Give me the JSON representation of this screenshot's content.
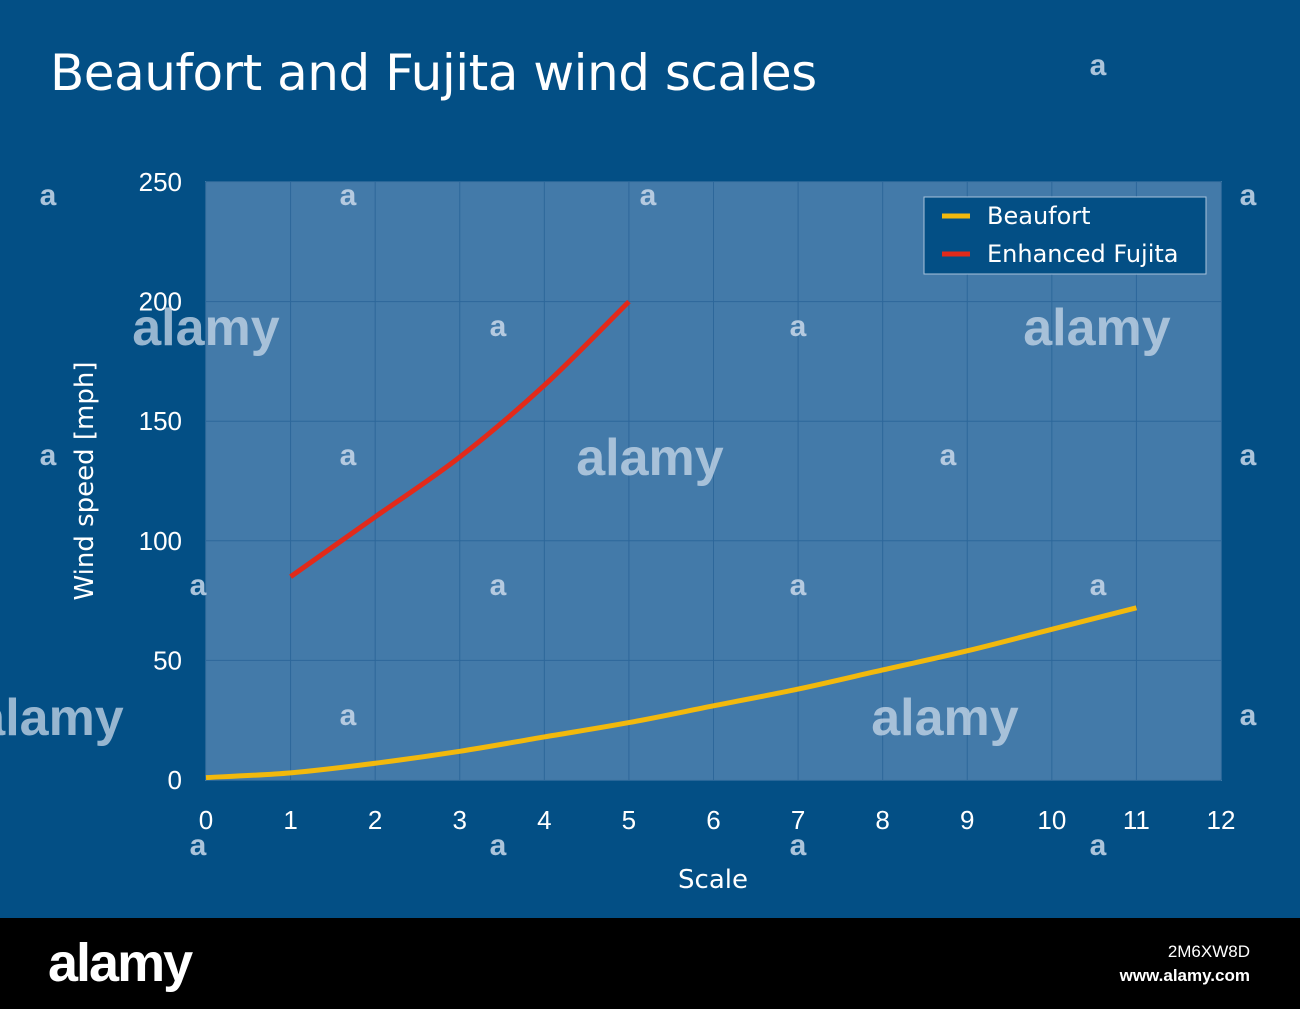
{
  "chart_data": {
    "type": "line",
    "title": "Beaufort and Fujita wind scales",
    "xlabel": "Scale",
    "ylabel": "Wind speed [mph]",
    "xlim": [
      0,
      12
    ],
    "ylim": [
      0,
      250
    ],
    "x_ticks": [
      "0",
      "1",
      "2",
      "3",
      "4",
      "5",
      "6",
      "7",
      "8",
      "9",
      "10",
      "11",
      "12"
    ],
    "y_ticks": [
      "0",
      "50",
      "100",
      "150",
      "200",
      "250"
    ],
    "grid": true,
    "legend_position": "top-right",
    "series": [
      {
        "name": "Beaufort",
        "color": "#f2b90d",
        "x": [
          0,
          1,
          2,
          3,
          4,
          5,
          6,
          7,
          8,
          9,
          10,
          11
        ],
        "y": [
          1,
          3,
          7,
          12,
          18,
          24,
          31,
          38,
          46,
          54,
          63,
          72
        ]
      },
      {
        "name": "Enhanced Fujita",
        "color": "#e22a1a",
        "x": [
          1,
          2,
          3,
          4,
          5
        ],
        "y": [
          85,
          110,
          135,
          165,
          200
        ]
      }
    ]
  },
  "watermark": {
    "word": "alamy",
    "letter": "a"
  },
  "footer": {
    "logo": "alamy",
    "image_id": "2M6XW8D",
    "site": "www.alamy.com"
  }
}
